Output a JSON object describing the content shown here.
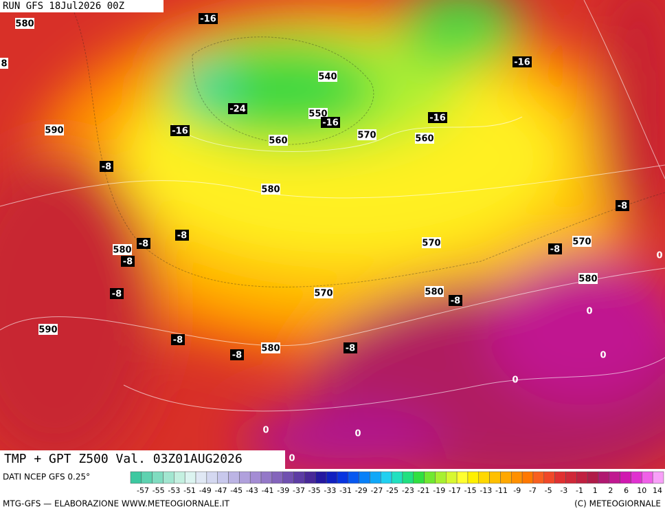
{
  "header": {
    "run": "RUN GFS 18Jul2026 00Z"
  },
  "map": {
    "labels": [
      "580",
      "-16",
      "8",
      "540",
      "-16",
      "-24",
      "550",
      "-16",
      "-16",
      "590",
      "-16",
      "570",
      "560",
      "560",
      "-8",
      "580",
      "-8",
      "-8",
      "-8",
      "580",
      "570",
      "-8",
      "570",
      "-8",
      "0",
      "580",
      "-8",
      "570",
      "580",
      "-8",
      "0",
      "590",
      "-8",
      "-8",
      "580",
      "-8",
      "0",
      "0",
      "0",
      "0",
      "0"
    ]
  },
  "title": "TMP + GPT Z500 Val. 03Z01AUG2026",
  "source": "DATI NCEP GFS 0.25°",
  "legend": {
    "colors": [
      "#3cc8a0",
      "#5ed2b0",
      "#80dcc0",
      "#a2e6d0",
      "#c4f0e0",
      "#dcf4f0",
      "#e0e8f4",
      "#d4d8f0",
      "#c8c8ec",
      "#bcb4e4",
      "#b0a0dc",
      "#a48cd4",
      "#9478c8",
      "#8464bc",
      "#7050b0",
      "#5c3ca4",
      "#482898",
      "#2418a0",
      "#1020c0",
      "#0834e0",
      "#0858f0",
      "#0880f8",
      "#10a8f8",
      "#20d0f0",
      "#20e0c0",
      "#20e080",
      "#30e040",
      "#70e830",
      "#a8f030",
      "#d8f830",
      "#ffff30",
      "#fff000",
      "#ffd800",
      "#ffc000",
      "#ffa800",
      "#ff9000",
      "#ff7800",
      "#f86020",
      "#f04828",
      "#e03030",
      "#d02838",
      "#c02040",
      "#b01c48",
      "#b01870",
      "#c01890",
      "#d018b0",
      "#e030d0",
      "#f060e8",
      "#f8a0f8"
    ],
    "labels": [
      -57,
      -55,
      -53,
      -51,
      -49,
      -47,
      -45,
      -43,
      -41,
      -39,
      -37,
      -35,
      -33,
      -31,
      -29,
      -27,
      -25,
      -23,
      -21,
      -19,
      -17,
      -15,
      -13,
      -11,
      -9,
      -7,
      -5,
      -3,
      -1,
      1,
      2,
      6,
      10,
      14
    ]
  },
  "footer": {
    "left": "MTG-GFS — ELABORAZIONE WWW.METEOGIORNALE.IT",
    "right": "(C) METEOGIORNALE"
  }
}
